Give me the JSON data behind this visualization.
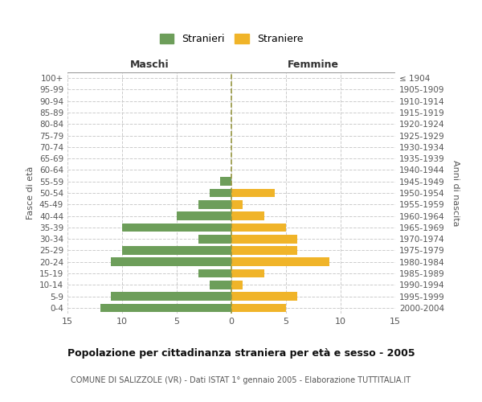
{
  "age_groups": [
    "0-4",
    "5-9",
    "10-14",
    "15-19",
    "20-24",
    "25-29",
    "30-34",
    "35-39",
    "40-44",
    "45-49",
    "50-54",
    "55-59",
    "60-64",
    "65-69",
    "70-74",
    "75-79",
    "80-84",
    "85-89",
    "90-94",
    "95-99",
    "100+"
  ],
  "birth_years": [
    "2000-2004",
    "1995-1999",
    "1990-1994",
    "1985-1989",
    "1980-1984",
    "1975-1979",
    "1970-1974",
    "1965-1969",
    "1960-1964",
    "1955-1959",
    "1950-1954",
    "1945-1949",
    "1940-1944",
    "1935-1939",
    "1930-1934",
    "1925-1929",
    "1920-1924",
    "1915-1919",
    "1910-1914",
    "1905-1909",
    "≤ 1904"
  ],
  "males": [
    12,
    11,
    2,
    3,
    11,
    10,
    3,
    10,
    5,
    3,
    2,
    1,
    0,
    0,
    0,
    0,
    0,
    0,
    0,
    0,
    0
  ],
  "females": [
    5,
    6,
    1,
    3,
    9,
    6,
    6,
    5,
    3,
    1,
    4,
    0,
    0,
    0,
    0,
    0,
    0,
    0,
    0,
    0,
    0
  ],
  "male_color": "#6d9e5a",
  "female_color": "#f0b429",
  "title": "Popolazione per cittadinanza straniera per età e sesso - 2005",
  "subtitle": "COMUNE DI SALIZZOLE (VR) - Dati ISTAT 1° gennaio 2005 - Elaborazione TUTTITALIA.IT",
  "legend_male": "Stranieri",
  "legend_female": "Straniere",
  "header_left": "Maschi",
  "header_right": "Femmine",
  "ylabel_left": "Fasce di età",
  "ylabel_right": "Anni di nascita",
  "xlim": 15,
  "background_color": "#ffffff",
  "grid_color": "#cccccc",
  "bar_height": 0.75
}
